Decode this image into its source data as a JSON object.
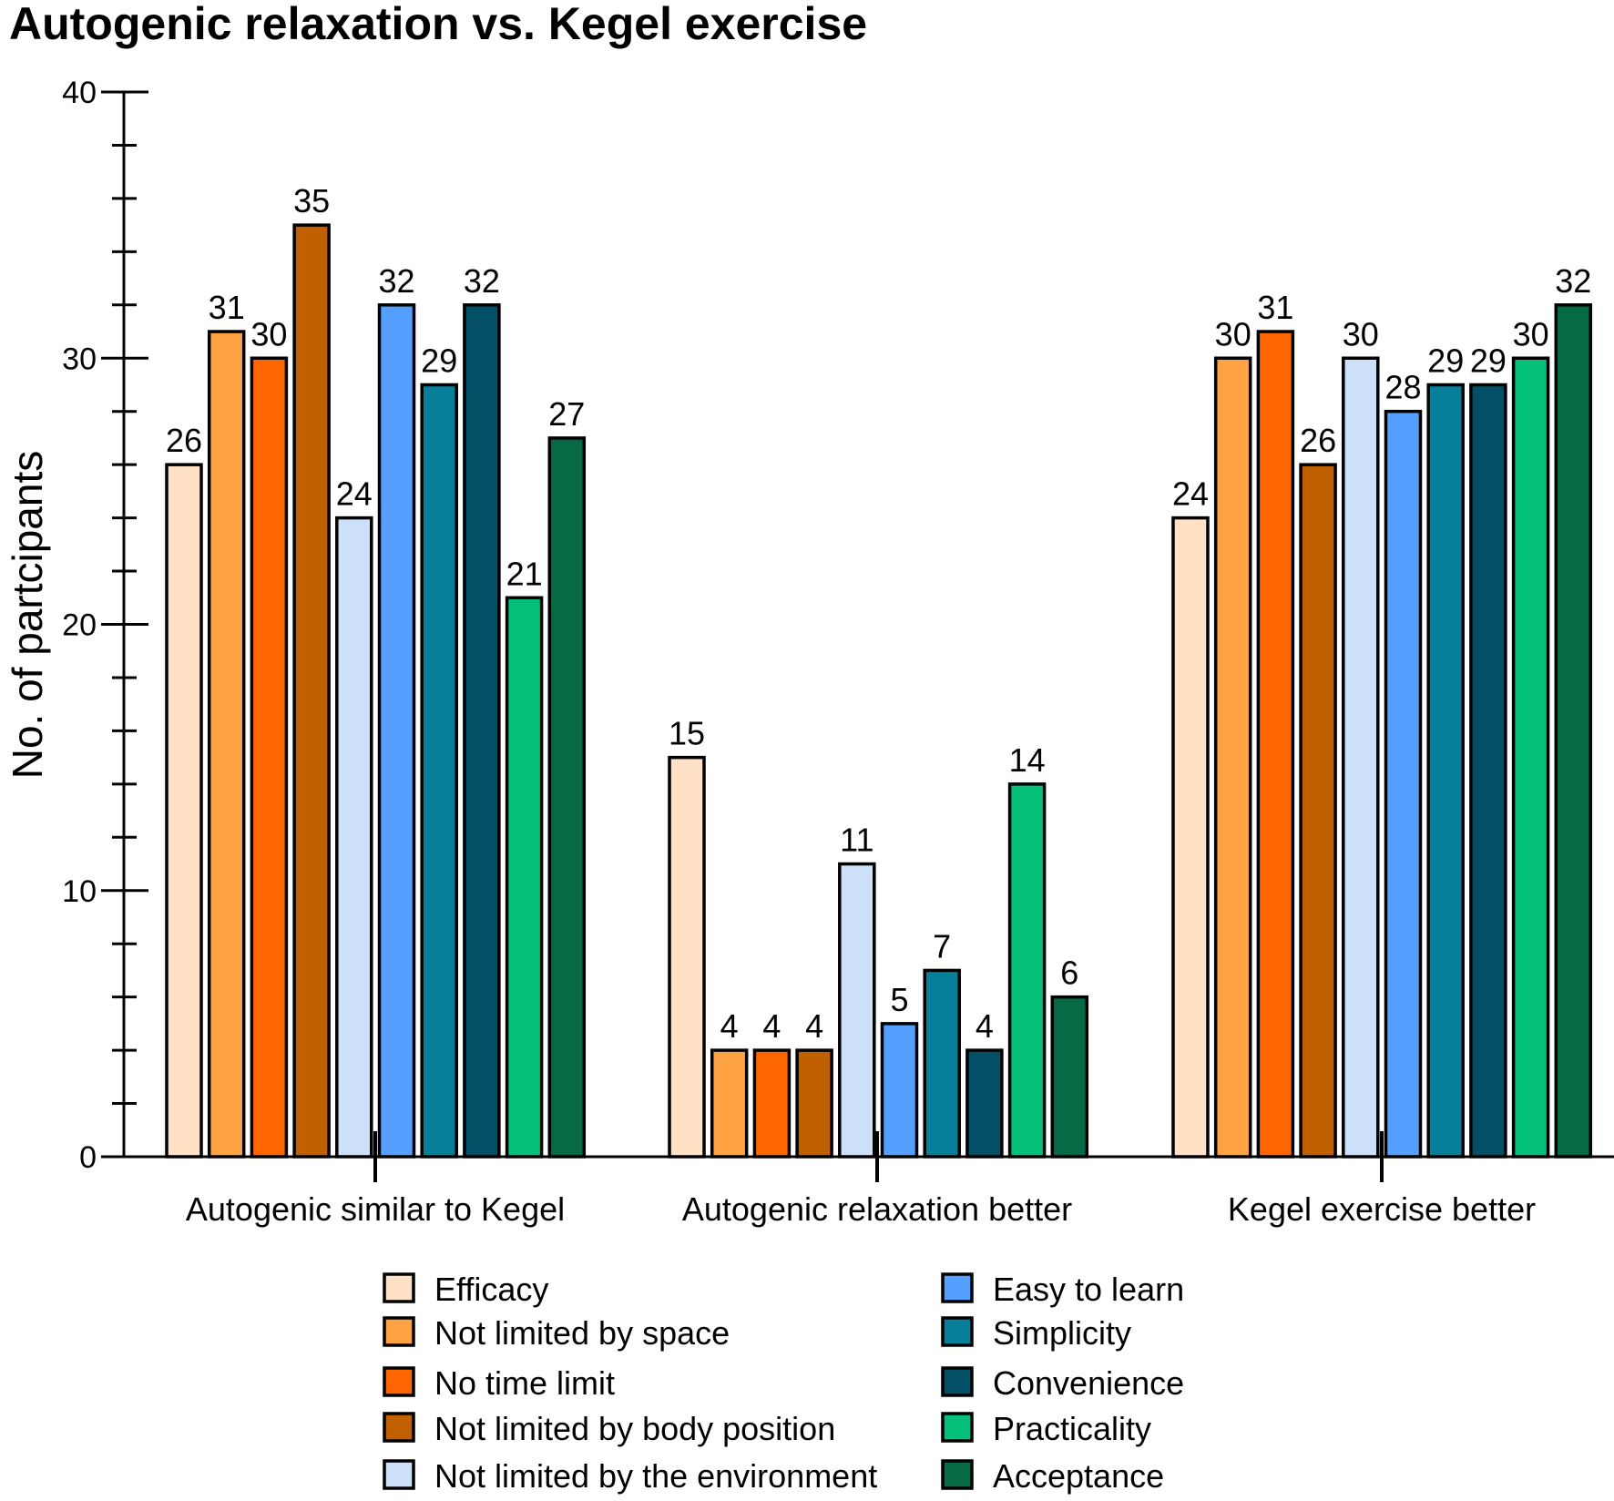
{
  "chart_data": {
    "type": "bar",
    "title": "Autogenic relaxation vs. Kegel exercise",
    "xlabel": "",
    "ylabel": "No. of partcipants",
    "ylim": [
      0,
      40
    ],
    "yticks_major": [
      0,
      10,
      20,
      30,
      40
    ],
    "yticks_major_labels": [
      "0",
      "10",
      "20",
      "30",
      "40"
    ],
    "ytick_minor_step": 2,
    "grid": false,
    "legend_position": "bottom",
    "categories": [
      "Autogenic similar to Kegel",
      "Autogenic relaxation better",
      "Kegel exercise better"
    ],
    "series": [
      {
        "name": "Efficacy",
        "color": "#FFE2C6",
        "values": [
          26,
          15,
          24
        ]
      },
      {
        "name": "Not limited by space",
        "color": "#FFA244",
        "values": [
          31,
          4,
          30
        ]
      },
      {
        "name": "No time limit",
        "color": "#FF6600",
        "values": [
          30,
          4,
          31
        ]
      },
      {
        "name": "Not limited by body position",
        "color": "#C06000",
        "values": [
          35,
          4,
          26
        ]
      },
      {
        "name": "Not limited by the environment",
        "color": "#CCE0F8",
        "values": [
          24,
          11,
          30
        ]
      },
      {
        "name": "Easy to learn",
        "color": "#559FFF",
        "values": [
          32,
          5,
          28
        ]
      },
      {
        "name": "Simplicity",
        "color": "#077F99",
        "values": [
          29,
          7,
          29
        ]
      },
      {
        "name": "Convenience",
        "color": "#034F66",
        "values": [
          32,
          4,
          29
        ]
      },
      {
        "name": "Practicality",
        "color": "#05C079",
        "values": [
          21,
          14,
          30
        ]
      },
      {
        "name": "Acceptance",
        "color": "#066A44",
        "values": [
          27,
          6,
          32
        ]
      }
    ]
  }
}
